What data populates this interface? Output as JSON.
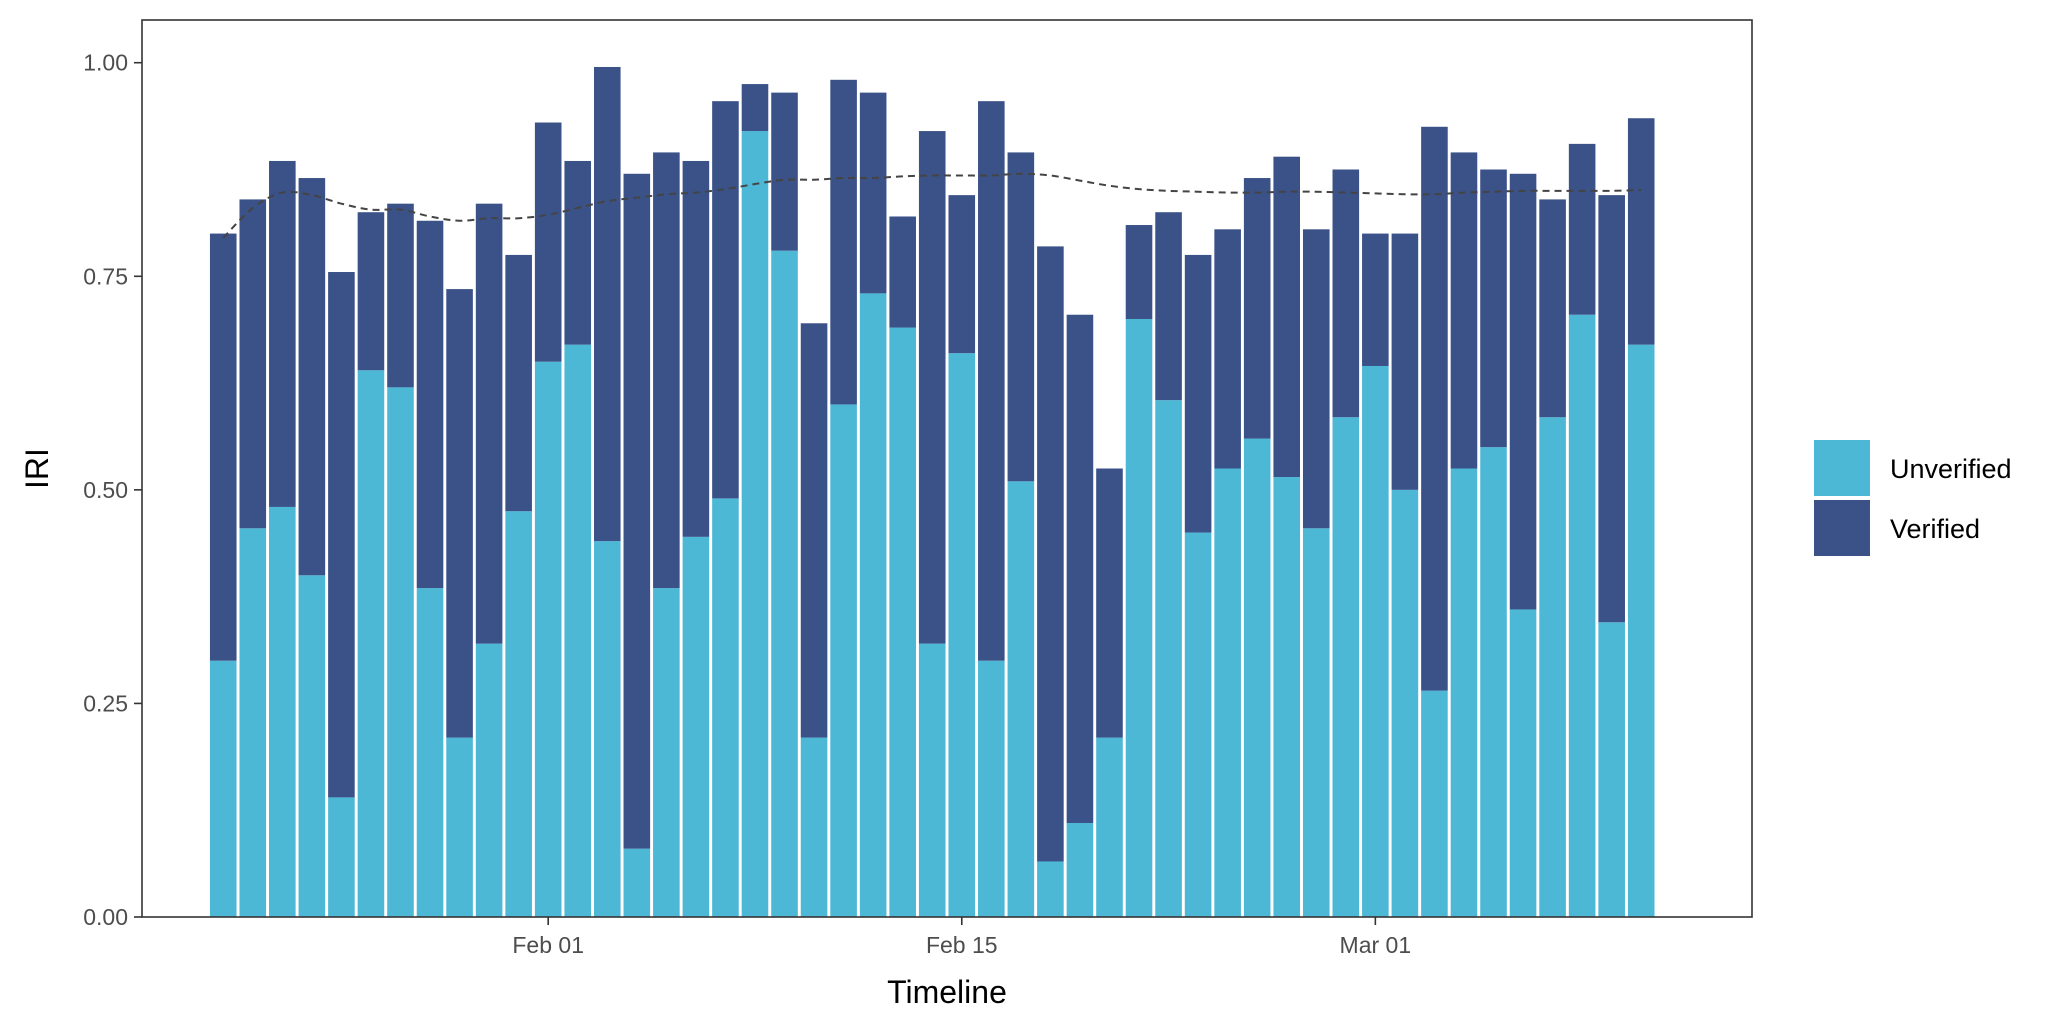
{
  "chart_data": {
    "type": "bar",
    "stacked": true,
    "title": "",
    "xlabel": "Timeline",
    "ylabel": "IRI",
    "ylim": [
      0,
      1.05
    ],
    "yticks": [
      0.0,
      0.25,
      0.5,
      0.75,
      1.0
    ],
    "ytick_labels": [
      "0.00",
      "0.25",
      "0.50",
      "0.75",
      "1.00"
    ],
    "x_dates": [
      "2021-01-21",
      "2021-01-22",
      "2021-01-23",
      "2021-01-24",
      "2021-01-25",
      "2021-01-26",
      "2021-01-27",
      "2021-01-28",
      "2021-01-29",
      "2021-01-30",
      "2021-01-31",
      "2021-02-01",
      "2021-02-02",
      "2021-02-03",
      "2021-02-04",
      "2021-02-05",
      "2021-02-06",
      "2021-02-07",
      "2021-02-08",
      "2021-02-09",
      "2021-02-10",
      "2021-02-11",
      "2021-02-12",
      "2021-02-13",
      "2021-02-14",
      "2021-02-15",
      "2021-02-16",
      "2021-02-17",
      "2021-02-18",
      "2021-02-19",
      "2021-02-20",
      "2021-02-21",
      "2021-02-22",
      "2021-02-23",
      "2021-02-24",
      "2021-02-25",
      "2021-02-26",
      "2021-02-27",
      "2021-02-28",
      "2021-03-01",
      "2021-03-02",
      "2021-03-03",
      "2021-03-04",
      "2021-03-05",
      "2021-03-06",
      "2021-03-07",
      "2021-03-08",
      "2021-03-09",
      "2021-03-10",
      "2021-03-11"
    ],
    "xticks": [
      {
        "date": "2021-02-01",
        "label": "Feb 01"
      },
      {
        "date": "2021-02-15",
        "label": "Feb 15"
      },
      {
        "date": "2021-03-01",
        "label": "Mar 01"
      }
    ],
    "series": [
      {
        "name": "Unverified",
        "color": "#4db8d6",
        "values": [
          0.3,
          0.455,
          0.48,
          0.4,
          0.14,
          0.64,
          0.62,
          0.385,
          0.21,
          0.32,
          0.475,
          0.65,
          0.67,
          0.44,
          0.08,
          0.385,
          0.445,
          0.49,
          0.92,
          0.78,
          0.21,
          0.6,
          0.73,
          0.69,
          0.32,
          0.66,
          0.3,
          0.51,
          0.065,
          0.11,
          0.21,
          0.7,
          0.605,
          0.45,
          0.525,
          0.56,
          0.515,
          0.455,
          0.585,
          0.645,
          0.5,
          0.265,
          0.525,
          0.55,
          0.36,
          0.585,
          0.705,
          0.345,
          0.67,
          null
        ]
      },
      {
        "name": "Verified",
        "color": "#3b5288",
        "values": [
          0.5,
          0.385,
          0.405,
          0.465,
          0.615,
          0.185,
          0.215,
          0.43,
          0.525,
          0.515,
          0.3,
          0.28,
          0.215,
          0.555,
          0.79,
          0.51,
          0.44,
          0.465,
          0.055,
          0.185,
          0.485,
          0.38,
          0.235,
          0.13,
          0.6,
          0.185,
          0.655,
          0.385,
          0.72,
          0.595,
          0.315,
          0.11,
          0.22,
          0.325,
          0.28,
          0.305,
          0.375,
          0.35,
          0.29,
          0.155,
          0.3,
          0.66,
          0.37,
          0.325,
          0.51,
          0.255,
          0.2,
          0.5,
          0.265,
          null
        ]
      }
    ],
    "trend": {
      "style": "dashed",
      "color": "#444444",
      "values": [
        0.795,
        0.83,
        0.848,
        0.845,
        0.835,
        0.828,
        0.828,
        0.82,
        0.815,
        0.818,
        0.818,
        0.822,
        0.83,
        0.838,
        0.842,
        0.846,
        0.848,
        0.852,
        0.858,
        0.863,
        0.863,
        0.865,
        0.865,
        0.867,
        0.868,
        0.868,
        0.868,
        0.87,
        0.868,
        0.862,
        0.856,
        0.852,
        0.85,
        0.849,
        0.848,
        0.848,
        0.849,
        0.849,
        0.848,
        0.847,
        0.846,
        0.846,
        0.848,
        0.849,
        0.85,
        0.85,
        0.85,
        0.85,
        0.851,
        null
      ]
    },
    "legend": {
      "position": "right",
      "entries": [
        "Unverified",
        "Verified"
      ]
    },
    "grid": false
  }
}
